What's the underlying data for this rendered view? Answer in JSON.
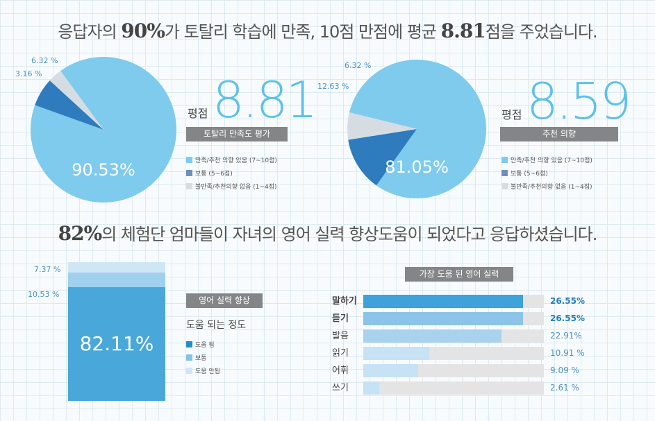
{
  "headline1": {
    "p1": "응답자의 ",
    "h1": "90%",
    "p2": "가 토탈리 학습에 만족, 10점 만점에 평균 ",
    "h2": "8.81",
    "p3": "점을 주었습니다."
  },
  "headline2": {
    "h1": "82%",
    "p1": "의 체험단 엄마들이 자녀의 영어 실력 향상도움이 되었다고 응답하셨습니다."
  },
  "colors": {
    "light_blue": "#7ecbee",
    "dark_blue": "#2e7bbe",
    "light_gray": "#d6dde2",
    "bar_blue": "#4aa7da",
    "bar_light": "#9fd0ee",
    "bar_pale": "#cfe6f5",
    "gray_bar": "#838586"
  },
  "pie1": {
    "score_label": "평점",
    "score": "8.81",
    "bar_title": "토탈리 만족도 평가",
    "legend": [
      "만족/추천 의향 있음 (7~10점)",
      "보통 (5~6점)",
      "불만족/추천의향 없음 (1~4점)"
    ]
  },
  "pie2": {
    "score_label": "평점",
    "score": "8.59",
    "bar_title": "추천 의향",
    "legend": [
      "만족/추천 의향 있음 (7~10점)",
      "보통 (5~6점)",
      "불만족/추천의향 없음 (1~4점)"
    ]
  },
  "stack": {
    "bar_title": "영어 실력 향상",
    "subtitle": "도움 되는 정도",
    "legend": [
      "도움 됨",
      "보통",
      "도움 안됨"
    ]
  },
  "hbar": {
    "title": "가장 도움 된 영어 실력"
  },
  "chart_data": [
    {
      "type": "pie",
      "slices": [
        {
          "label": "만족/추천 의향 있음 (7~10점)",
          "value": 90.53,
          "text": "90.53%"
        },
        {
          "label": "보통 (5~6점)",
          "value": 6.32,
          "text": "6.32 %"
        },
        {
          "label": "불만족/추천의향 없음 (1~4점)",
          "value": 3.16,
          "text": "3.16 %"
        }
      ]
    },
    {
      "type": "pie",
      "slices": [
        {
          "label": "만족/추천 의향 있음 (7~10점)",
          "value": 81.05,
          "text": "81.05%"
        },
        {
          "label": "보통 (5~6점)",
          "value": 12.63,
          "text": "12.63 %"
        },
        {
          "label": "불만족/추천의향 없음 (1~4점)",
          "value": 6.32,
          "text": "6.32 %"
        }
      ]
    },
    {
      "type": "bar",
      "stacked": true,
      "segments": [
        {
          "label": "도움 됨",
          "value": 82.11,
          "text": "82.11%"
        },
        {
          "label": "보통",
          "value": 10.53,
          "text": "10.53 %"
        },
        {
          "label": "도움 안됨",
          "value": 7.37,
          "text": "7.37 %"
        }
      ]
    },
    {
      "type": "bar",
      "orientation": "horizontal",
      "title": "가장 도움 된 영어 실력",
      "xlim": [
        0,
        30
      ],
      "categories": [
        "말하기",
        "듣기",
        "발음",
        "읽기",
        "어휘",
        "쓰기"
      ],
      "values": [
        26.55,
        26.55,
        22.91,
        10.91,
        9.09,
        2.61
      ],
      "labels": [
        "26.55%",
        "26.55%",
        "22.91%",
        "10.91 %",
        "9.09 %",
        "2.61 %"
      ]
    }
  ]
}
